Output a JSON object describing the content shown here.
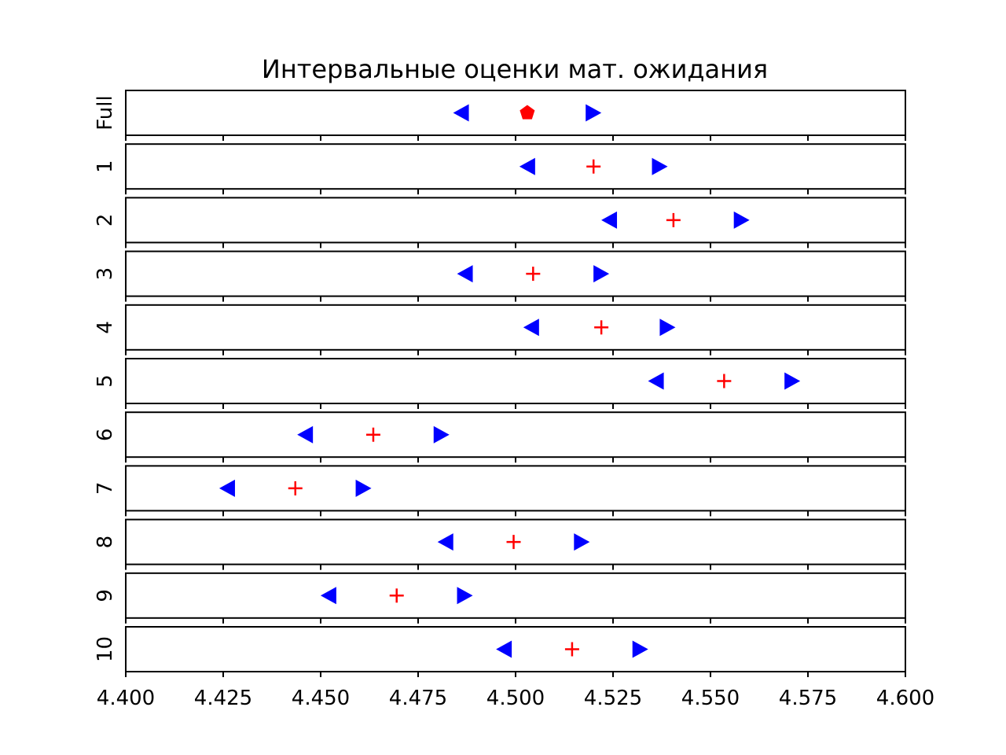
{
  "chart_data": {
    "type": "scatter",
    "title": "Интервальные оценки мат. ожидания",
    "xlabel": "",
    "ylabel": "",
    "xlim": [
      4.4,
      4.6
    ],
    "x_ticks": [
      "4.400",
      "4.425",
      "4.450",
      "4.475",
      "4.500",
      "4.525",
      "4.550",
      "4.575",
      "4.600"
    ],
    "x_tick_values": [
      4.4,
      4.425,
      4.45,
      4.475,
      4.5,
      4.525,
      4.55,
      4.575,
      4.6
    ],
    "grid": false,
    "legend": "none",
    "colors": {
      "bounds": "#0000ff",
      "estimate": "#ff0000"
    },
    "marker_style": {
      "lower": "left-triangle",
      "upper": "right-triangle",
      "full_estimate": "pentagon",
      "sample_estimate": "plus"
    },
    "rows": [
      {
        "label": "Full",
        "lower": 4.486,
        "estimate": 4.503,
        "upper": 4.52
      },
      {
        "label": "1",
        "lower": 4.503,
        "estimate": 4.52,
        "upper": 4.537
      },
      {
        "label": "2",
        "lower": 4.524,
        "estimate": 4.5405,
        "upper": 4.558
      },
      {
        "label": "3",
        "lower": 4.487,
        "estimate": 4.5045,
        "upper": 4.522
      },
      {
        "label": "4",
        "lower": 4.504,
        "estimate": 4.522,
        "upper": 4.539
      },
      {
        "label": "5",
        "lower": 4.536,
        "estimate": 4.5535,
        "upper": 4.571
      },
      {
        "label": "6",
        "lower": 4.446,
        "estimate": 4.4635,
        "upper": 4.481
      },
      {
        "label": "7",
        "lower": 4.426,
        "estimate": 4.4435,
        "upper": 4.461
      },
      {
        "label": "8",
        "lower": 4.482,
        "estimate": 4.4995,
        "upper": 4.517
      },
      {
        "label": "9",
        "lower": 4.452,
        "estimate": 4.4695,
        "upper": 4.487
      },
      {
        "label": "10",
        "lower": 4.497,
        "estimate": 4.5145,
        "upper": 4.532
      }
    ]
  }
}
